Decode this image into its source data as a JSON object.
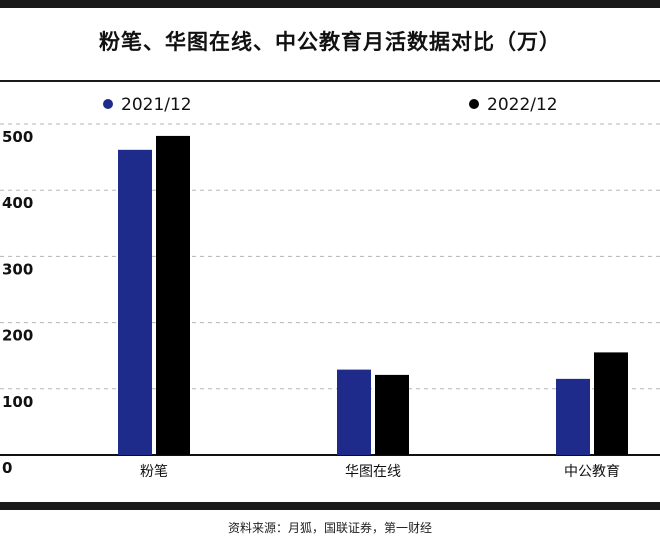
{
  "chart_data": {
    "type": "bar",
    "title": "粉笔、华图在线、中公教育月活数据对比（万）",
    "categories": [
      "粉笔",
      "华图在线",
      "中公教育"
    ],
    "series": [
      {
        "name": "2021/12",
        "values": [
          461,
          129,
          115
        ]
      },
      {
        "name": "2022/12",
        "values": [
          482,
          121,
          155
        ]
      }
    ],
    "yticks": [
      0,
      100,
      200,
      300,
      400,
      500
    ],
    "ylim": [
      0,
      500
    ],
    "grid": true,
    "legend_position": "top",
    "colors": {
      "series_2021": "#1f2b8a",
      "series_2022": "#000000"
    }
  },
  "source": "资料来源：月狐，国联证券，第一财经"
}
